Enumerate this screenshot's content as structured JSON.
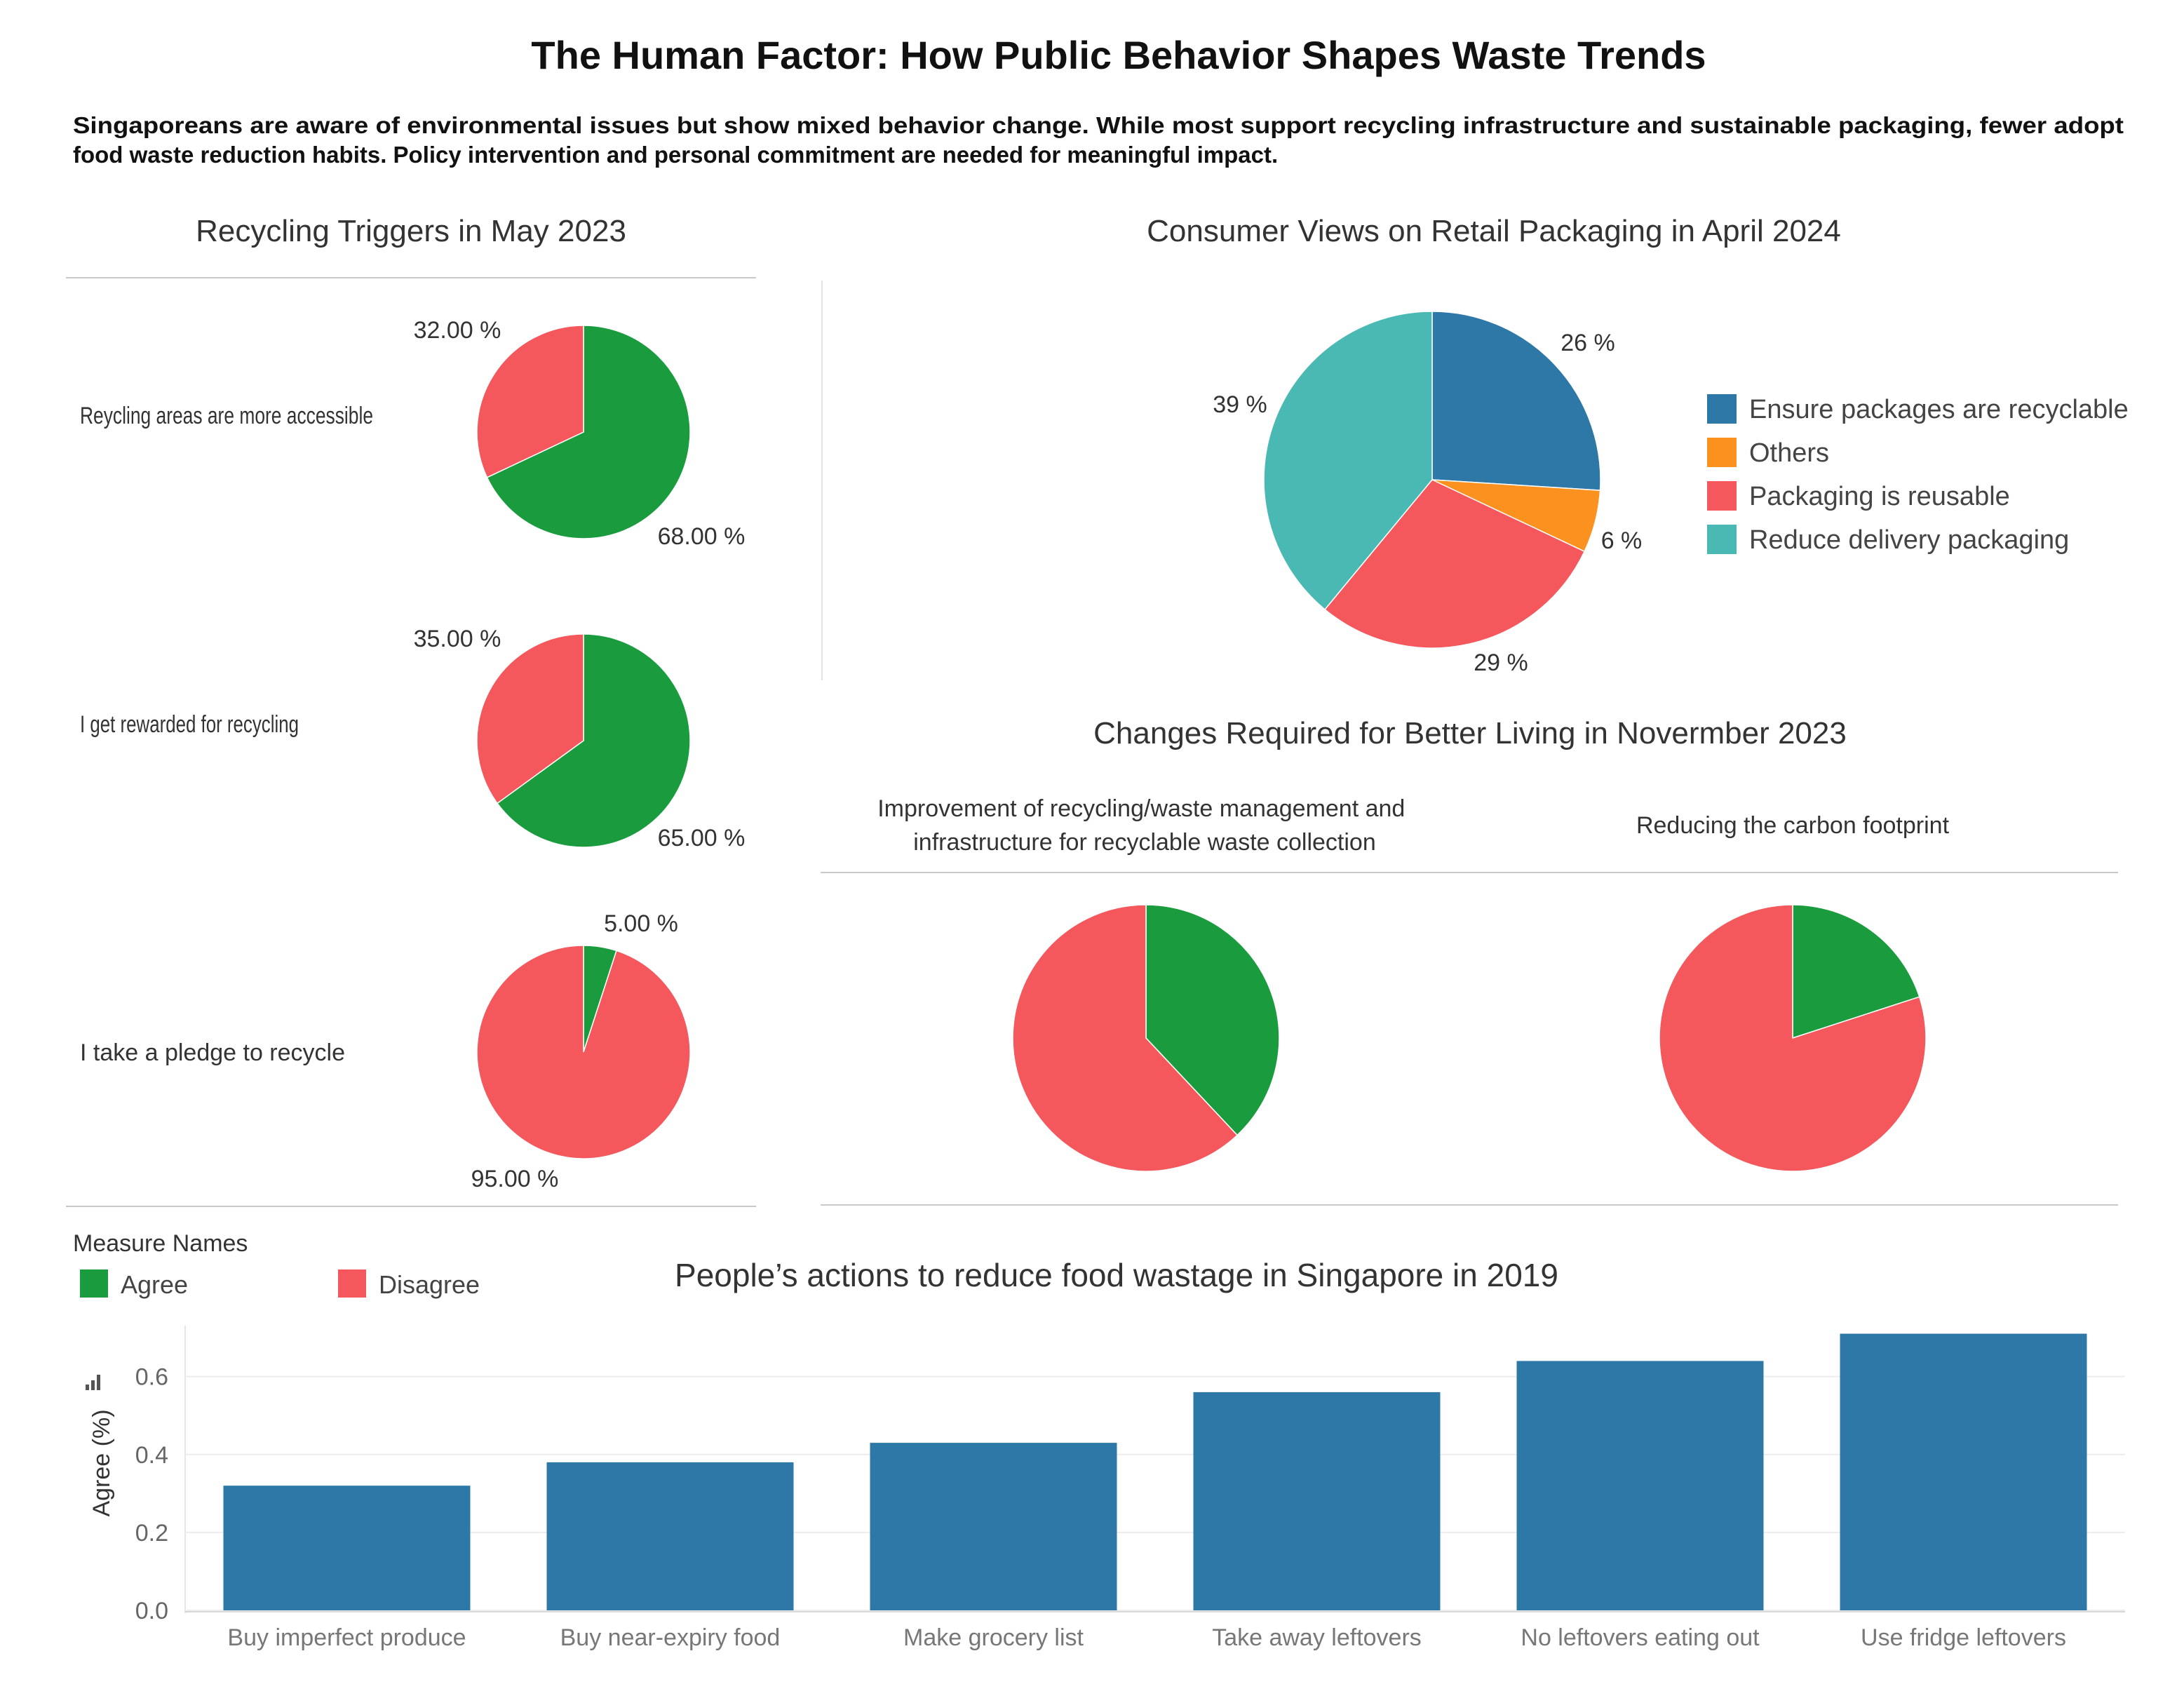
{
  "header": {
    "title": "The Human Factor: How Public Behavior Shapes Waste Trends",
    "description_line1": "Singaporeans are aware of environmental issues but show mixed behavior change. While most support recycling infrastructure and sustainable packaging, fewer adopt",
    "description_line2": "food waste reduction habits. Policy intervention and personal commitment are needed for meaningful impact."
  },
  "colors": {
    "agree": "#1a9c3e",
    "disagree": "#f5585c",
    "blue": "#2e78a8",
    "orange": "#fb9220",
    "teal": "#4bb9b3"
  },
  "legend": {
    "title": "Measure Names",
    "agree_label": "Agree",
    "disagree_label": "Disagree"
  },
  "chart_data": [
    {
      "type": "pie",
      "title": "Recycling Triggers in May 2023",
      "rows": [
        {
          "label": "Reycling areas are more accessible",
          "agree": 68,
          "disagree": 32,
          "agree_text": "68.00 %",
          "disagree_text": "32.00 %"
        },
        {
          "label": "I get rewarded for recycling",
          "agree": 65,
          "disagree": 35,
          "agree_text": "65.00 %",
          "disagree_text": "35.00 %"
        },
        {
          "label": "I take a pledge to recycle",
          "agree": 5,
          "disagree": 95,
          "agree_text": "5.00 %",
          "disagree_text": "95.00 %"
        }
      ]
    },
    {
      "type": "pie",
      "title": "Consumer Views on Retail Packaging in April 2024",
      "slices": [
        {
          "label": "Ensure packages are recyclable",
          "value": 26,
          "text": "26 %"
        },
        {
          "label": "Others",
          "value": 6,
          "text": "6 %"
        },
        {
          "label": "Packaging is reusable",
          "value": 29,
          "text": "29 %"
        },
        {
          "label": "Reduce delivery packaging",
          "value": 39,
          "text": "39 %"
        }
      ]
    },
    {
      "type": "pie",
      "title": "Changes Required for Better Living in Novermber 2023",
      "pies": [
        {
          "label_line1": "Improvement of recycling/waste management and",
          "label_line2": "infrastructure for recyclable waste collection",
          "agree": 38,
          "disagree": 62
        },
        {
          "label_line1": "Reducing the carbon footprint",
          "label_line2": "",
          "agree": 20,
          "disagree": 80
        }
      ]
    },
    {
      "type": "bar",
      "title": "People’s actions to reduce food wastage in Singapore in 2019",
      "ylabel": "Agree (%)",
      "ylim": [
        0,
        0.72
      ],
      "yticks": [
        0.0,
        0.2,
        0.4,
        0.6
      ],
      "ytick_labels": [
        "0.0",
        "0.2",
        "0.4",
        "0.6"
      ],
      "categories": [
        "Buy imperfect produce",
        "Buy near-expiry food",
        "Make grocery list",
        "Take away leftovers",
        "No leftovers eating out",
        "Use fridge leftovers"
      ],
      "values": [
        0.32,
        0.38,
        0.43,
        0.56,
        0.64,
        0.71
      ]
    }
  ]
}
